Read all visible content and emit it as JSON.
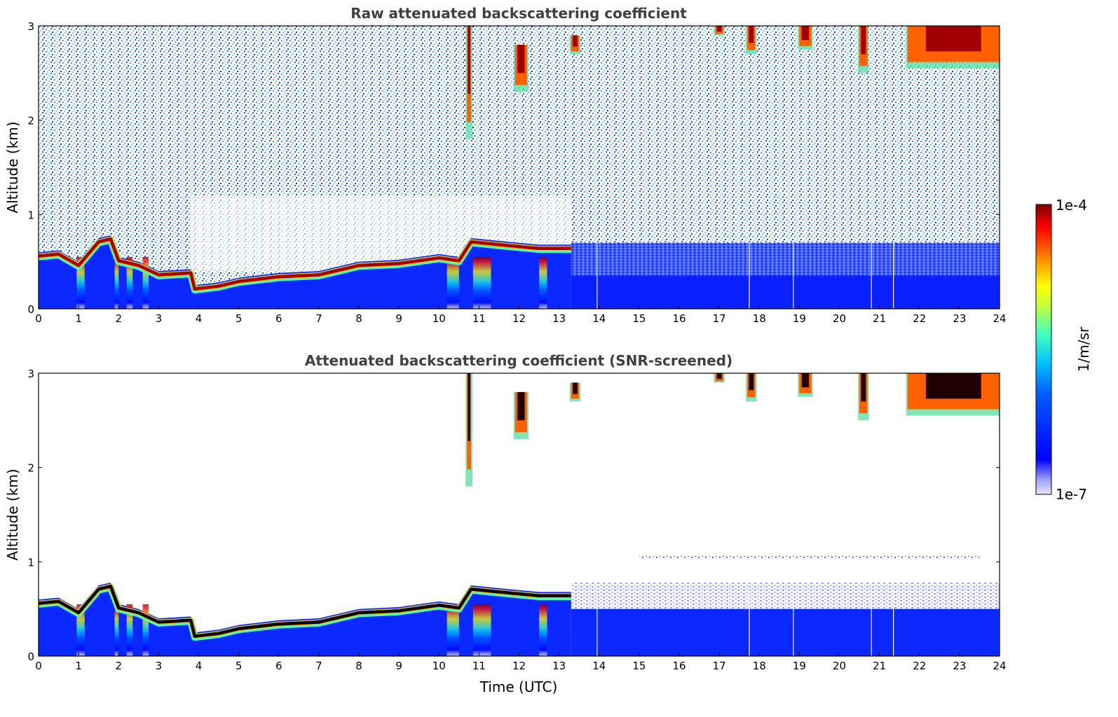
{
  "chart_data": [
    {
      "type": "heatmap",
      "title": "Raw attenuated backscattering coefficient",
      "xlabel": "",
      "ylabel": "Altitude (km)",
      "xlim": [
        0,
        24
      ],
      "ylim": [
        0,
        3
      ],
      "xticks": [
        "0",
        "1",
        "2",
        "3",
        "4",
        "5",
        "6",
        "7",
        "8",
        "9",
        "10",
        "11",
        "12",
        "13",
        "14",
        "15",
        "16",
        "17",
        "18",
        "19",
        "20",
        "21",
        "22",
        "23",
        "24"
      ],
      "yticks": [
        "0",
        "1",
        "2",
        "3"
      ],
      "colorscale": "jet (log)",
      "features": {
        "boundary_layer_top_km": [
          [
            0,
            0.6
          ],
          [
            0.5,
            0.62
          ],
          [
            1,
            0.5
          ],
          [
            1.5,
            0.75
          ],
          [
            1.8,
            0.78
          ],
          [
            2,
            0.55
          ],
          [
            2.5,
            0.5
          ],
          [
            3,
            0.4
          ],
          [
            3.8,
            0.42
          ],
          [
            3.9,
            0.25
          ],
          [
            4.5,
            0.28
          ],
          [
            5,
            0.33
          ],
          [
            6,
            0.38
          ],
          [
            7,
            0.4
          ],
          [
            8,
            0.5
          ],
          [
            9,
            0.52
          ],
          [
            10,
            0.58
          ],
          [
            10.5,
            0.55
          ],
          [
            10.8,
            0.75
          ],
          [
            11.5,
            0.72
          ],
          [
            12,
            0.7
          ],
          [
            12.5,
            0.68
          ],
          [
            13.3,
            0.68
          ]
        ],
        "high_cloud_segments": [
          {
            "x0": 10.7,
            "x1": 10.8,
            "ytop": 3,
            "ybottom": 1.8
          },
          {
            "x0": 11.9,
            "x1": 12.2,
            "ytop": 2.8,
            "ybottom": 2.3
          },
          {
            "x0": 13.3,
            "x1": 13.5,
            "ytop": 2.9,
            "ybottom": 2.7
          },
          {
            "x0": 16.9,
            "x1": 17.1,
            "ytop": 3,
            "ybottom": 2.9
          },
          {
            "x0": 17.7,
            "x1": 17.9,
            "ytop": 3,
            "ybottom": 2.7
          },
          {
            "x0": 19.0,
            "x1": 19.3,
            "ytop": 3,
            "ybottom": 2.75
          },
          {
            "x0": 20.5,
            "x1": 20.7,
            "ytop": 3,
            "ybottom": 2.5
          },
          {
            "x0": 21.7,
            "x1": 24,
            "ytop": 3,
            "ybottom": 2.55
          }
        ],
        "gap_lines_utc": [
          13.95,
          17.75,
          18.85,
          20.8,
          21.35
        ]
      }
    },
    {
      "type": "heatmap",
      "title": "Attenuated backscattering coefficient (SNR-screened)",
      "xlabel": "Time (UTC)",
      "ylabel": "Altitude (km)",
      "xlim": [
        0,
        24
      ],
      "ylim": [
        0,
        3
      ],
      "xticks": [
        "0",
        "1",
        "2",
        "3",
        "4",
        "5",
        "6",
        "7",
        "8",
        "9",
        "10",
        "11",
        "12",
        "13",
        "14",
        "15",
        "16",
        "17",
        "18",
        "19",
        "20",
        "21",
        "22",
        "23",
        "24"
      ],
      "yticks": [
        "0",
        "1",
        "2",
        "3"
      ],
      "colorscale": "jet (log)"
    }
  ],
  "colorbar": {
    "max_label": "1e-4",
    "min_label": "1e-7",
    "label": "1/m/sr",
    "colors": [
      "#e8e8f8",
      "#0000ff",
      "#00a0ff",
      "#00ffff",
      "#80ff80",
      "#ffff00",
      "#ff8000",
      "#ff0000",
      "#800000"
    ]
  }
}
